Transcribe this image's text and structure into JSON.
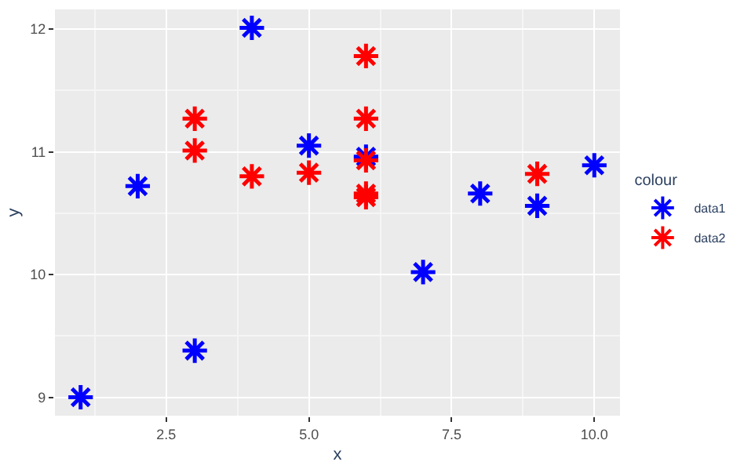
{
  "chart_data": {
    "type": "scatter",
    "xlabel": "x",
    "ylabel": "y",
    "legend_title": "colour",
    "legend": "right",
    "grid": true,
    "marker": "cross",
    "xlim": [
      0.55,
      10.45
    ],
    "ylim": [
      8.85,
      12.16
    ],
    "xticks": [
      {
        "value": 2.5,
        "label": "2.5"
      },
      {
        "value": 5,
        "label": "5.0"
      },
      {
        "value": 7.5,
        "label": "7.5"
      },
      {
        "value": 10,
        "label": "10.0"
      }
    ],
    "yticks": [
      9,
      10,
      11,
      12
    ],
    "series": [
      {
        "name": "data1",
        "color": "#0000ff",
        "x": [
          1,
          2,
          3,
          4,
          5,
          6,
          7,
          8,
          9,
          10
        ],
        "values": [
          9.0,
          10.72,
          9.38,
          12.01,
          11.05,
          10.96,
          10.02,
          10.66,
          10.56,
          10.89
        ]
      },
      {
        "name": "data2",
        "color": "#ff0000",
        "x": [
          3,
          3,
          4,
          5,
          6,
          6,
          6,
          6,
          6,
          9
        ],
        "values": [
          11.27,
          11.01,
          10.8,
          10.83,
          11.78,
          11.27,
          10.93,
          10.66,
          10.63,
          10.82
        ]
      }
    ]
  }
}
